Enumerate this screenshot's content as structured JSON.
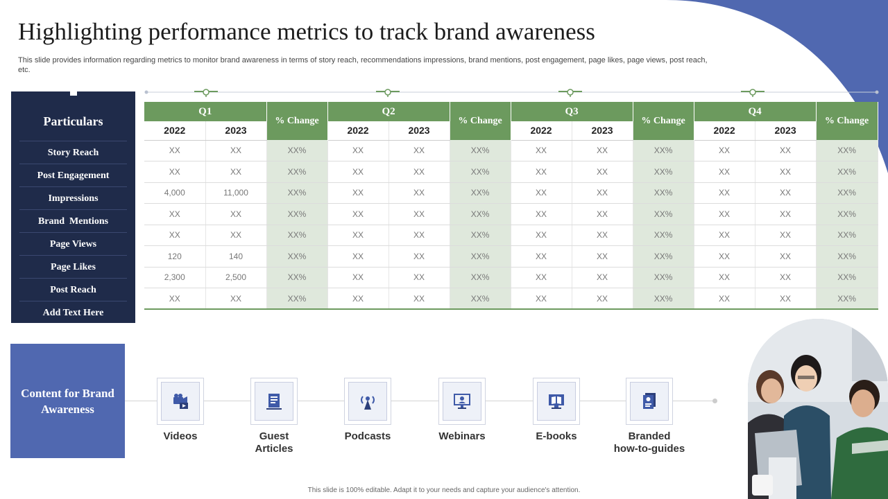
{
  "title": "Highlighting performance metrics to track brand awareness",
  "subtitle": "This slide provides information regarding metrics to monitor brand awareness in terms of story reach, recommendations impressions, brand mentions, post engagement, page likes, page views, post reach, etc.",
  "colors": {
    "navy": "#1f2b4a",
    "green": "#6c9a5e",
    "light_green": "#dfe8dc",
    "blue": "#5068b0"
  },
  "particulars": {
    "header": "Particulars",
    "items": [
      "Story Reach",
      "Post Engagement",
      "Impressions",
      "Brand  Mentions",
      "Page Views",
      "Page Likes",
      "Post Reach",
      "Add Text Here"
    ]
  },
  "table": {
    "quarters": [
      "Q1",
      "Q2",
      "Q3",
      "Q4"
    ],
    "change_label": "% Change",
    "years": [
      "2022",
      "2023"
    ],
    "rows": [
      [
        "XX",
        "XX",
        "XX%",
        "XX",
        "XX",
        "XX%",
        "XX",
        "XX",
        "XX%",
        "XX",
        "XX",
        "XX%"
      ],
      [
        "XX",
        "XX",
        "XX%",
        "XX",
        "XX",
        "XX%",
        "XX",
        "XX",
        "XX%",
        "XX",
        "XX",
        "XX%"
      ],
      [
        "4,000",
        "11,000",
        "XX%",
        "XX",
        "XX",
        "XX%",
        "XX",
        "XX",
        "XX%",
        "XX",
        "XX",
        "XX%"
      ],
      [
        "XX",
        "XX",
        "XX%",
        "XX",
        "XX",
        "XX%",
        "XX",
        "XX",
        "XX%",
        "XX",
        "XX",
        "XX%"
      ],
      [
        "XX",
        "XX",
        "XX%",
        "XX",
        "XX",
        "XX%",
        "XX",
        "XX",
        "XX%",
        "XX",
        "XX",
        "XX%"
      ],
      [
        "120",
        "140",
        "XX%",
        "XX",
        "XX",
        "XX%",
        "XX",
        "XX",
        "XX%",
        "XX",
        "XX",
        "XX%"
      ],
      [
        "2,300",
        "2,500",
        "XX%",
        "XX",
        "XX",
        "XX%",
        "XX",
        "XX",
        "XX%",
        "XX",
        "XX",
        "XX%"
      ],
      [
        "XX",
        "XX",
        "XX%",
        "XX",
        "XX",
        "XX%",
        "XX",
        "XX",
        "XX%",
        "XX",
        "XX",
        "XX%"
      ]
    ]
  },
  "content": {
    "label": "Content for Brand Awareness",
    "items": [
      {
        "label": "Videos",
        "icon": "video-camera-icon"
      },
      {
        "label": "Guest\nArticles",
        "icon": "article-icon"
      },
      {
        "label": "Podcasts",
        "icon": "broadcast-tower-icon"
      },
      {
        "label": "Webinars",
        "icon": "webinar-screen-icon"
      },
      {
        "label": "E-books",
        "icon": "ebook-icon"
      },
      {
        "label": "Branded\nhow-to-guides",
        "icon": "guide-document-icon"
      }
    ]
  },
  "footer": "This slide is 100% editable. Adapt it to your needs and capture your audience's attention."
}
